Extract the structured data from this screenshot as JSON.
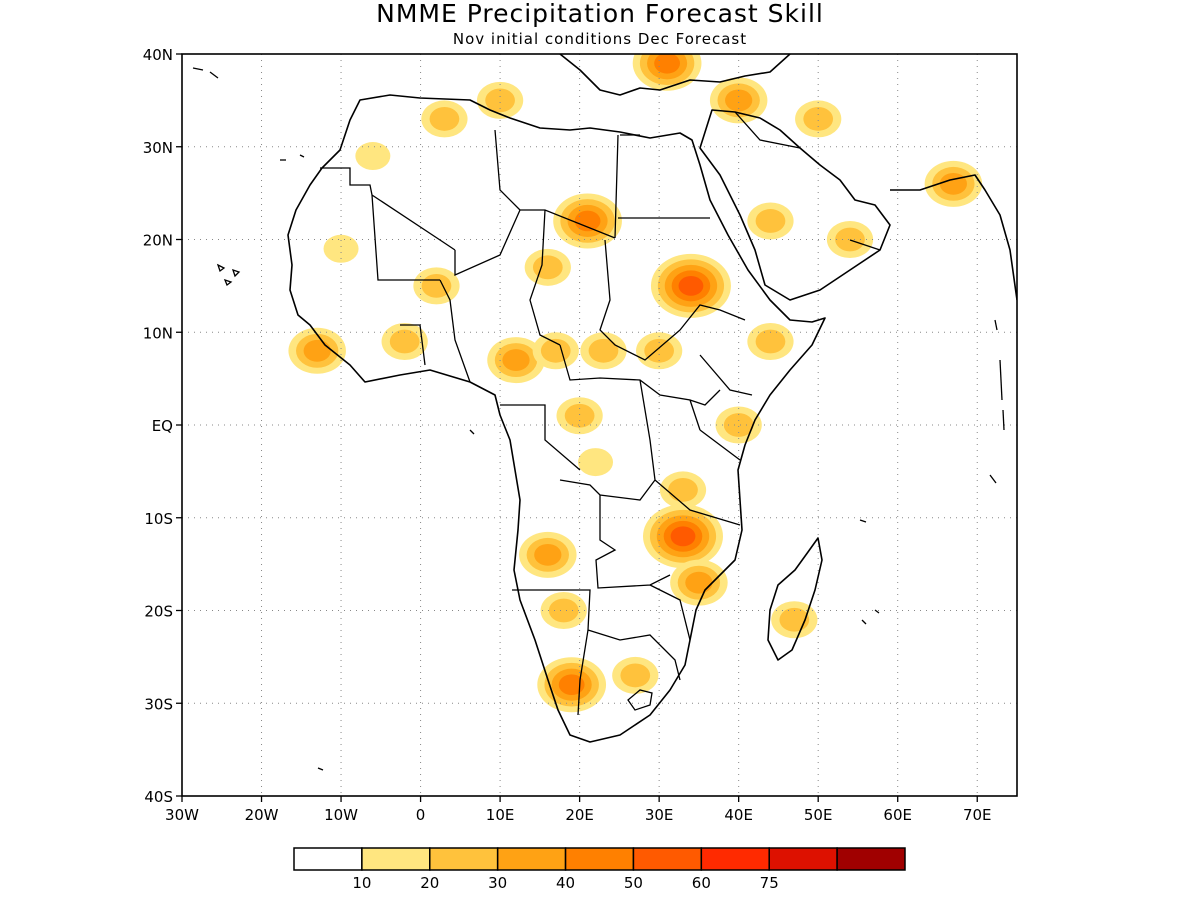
{
  "title": "NMME Precipitation Forecast Skill",
  "subtitle": "Nov initial conditions  Dec Forecast",
  "axes": {
    "x_ticks": [
      "30W",
      "20W",
      "10W",
      "0",
      "10E",
      "20E",
      "30E",
      "40E",
      "50E",
      "60E",
      "70E"
    ],
    "y_ticks": [
      "40N",
      "30N",
      "20N",
      "10N",
      "EQ",
      "10S",
      "20S",
      "30S",
      "40S"
    ]
  },
  "colorbar": {
    "colors": [
      "#ffffff",
      "#ffe680",
      "#ffc23c",
      "#ffa214",
      "#ff8000",
      "#ff5a00",
      "#ff2a00",
      "#dd1100",
      "#a00000"
    ],
    "labels": [
      "10",
      "20",
      "30",
      "40",
      "50",
      "60",
      "75"
    ]
  },
  "chart_data": {
    "type": "heatmap",
    "title": "NMME Precipitation Forecast Skill",
    "subtitle": "Nov initial conditions  Dec Forecast",
    "xlim": [
      -30,
      75
    ],
    "ylim": [
      -40,
      40
    ],
    "levels": [
      10,
      20,
      30,
      40,
      50,
      60,
      75
    ],
    "grid": true,
    "legend_position": "bottom",
    "skill_regions": [
      {
        "lon": -13,
        "lat": 8,
        "level": 30
      },
      {
        "lon": 12,
        "lat": 7,
        "level": 30
      },
      {
        "lon": 21,
        "lat": 22,
        "level": 40
      },
      {
        "lon": 34,
        "lat": 15,
        "level": 50
      },
      {
        "lon": 31,
        "lat": 39,
        "level": 40
      },
      {
        "lon": 44,
        "lat": 22,
        "level": 20
      },
      {
        "lon": 16,
        "lat": -14,
        "level": 30
      },
      {
        "lon": 33,
        "lat": -12,
        "level": 50
      },
      {
        "lon": 19,
        "lat": -28,
        "level": 40
      },
      {
        "lon": 27,
        "lat": -27,
        "level": 20
      },
      {
        "lon": 47,
        "lat": -21,
        "level": 20
      }
    ]
  }
}
